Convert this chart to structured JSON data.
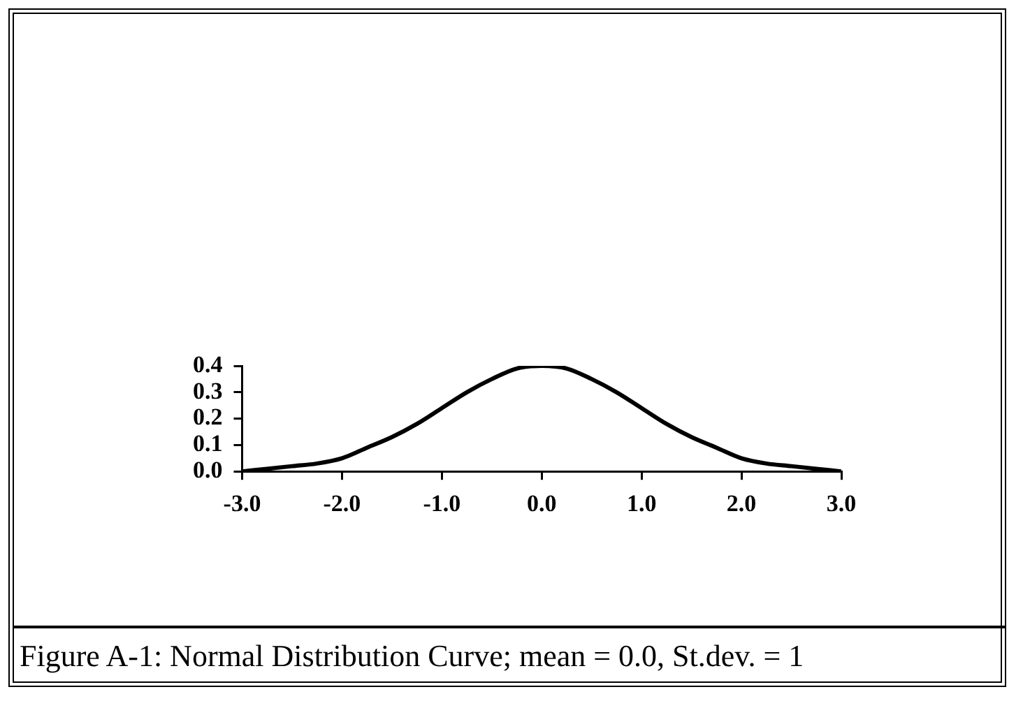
{
  "chart_data": {
    "type": "line",
    "x": [
      -3,
      -2.75,
      -2.5,
      -2.25,
      -2,
      -1.75,
      -1.5,
      -1.25,
      -1,
      -0.75,
      -0.5,
      -0.25,
      0,
      0.25,
      0.5,
      0.75,
      1,
      1.25,
      1.5,
      1.75,
      2,
      2.25,
      2.5,
      2.75,
      3
    ],
    "series": [
      {
        "color": "#000000",
        "values": [
          0.0,
          0.01,
          0.02,
          0.03,
          0.05,
          0.09,
          0.13,
          0.18,
          0.24,
          0.3,
          0.35,
          0.39,
          0.4,
          0.39,
          0.35,
          0.3,
          0.24,
          0.18,
          0.13,
          0.09,
          0.05,
          0.03,
          0.02,
          0.01,
          0.0
        ]
      }
    ],
    "xlim": [
      -3,
      3
    ],
    "xticks": [
      {
        "value": -3,
        "label": "-3.0"
      },
      {
        "value": -2,
        "label": "-2.0"
      },
      {
        "value": -1,
        "label": "-1.0"
      },
      {
        "value": 0,
        "label": "0.0"
      },
      {
        "value": 1,
        "label": "1.0"
      },
      {
        "value": 2,
        "label": "2.0"
      },
      {
        "value": 3,
        "label": "3.0"
      }
    ],
    "ylim": [
      0,
      0.4
    ],
    "yticks": [
      {
        "value": 0,
        "label": "0.0"
      },
      {
        "value": 0.1,
        "label": "0.1"
      },
      {
        "value": 0.2,
        "label": "0.2"
      },
      {
        "value": 0.3,
        "label": "0.3"
      },
      {
        "value": 0.4,
        "label": "0.4"
      }
    ],
    "grid": false,
    "legend": false,
    "marker": "none",
    "line_style": "solid",
    "annotations": [
      "Figure A-1: Normal Distribution Curve; mean = 0.0, St.dev. = 1"
    ]
  }
}
